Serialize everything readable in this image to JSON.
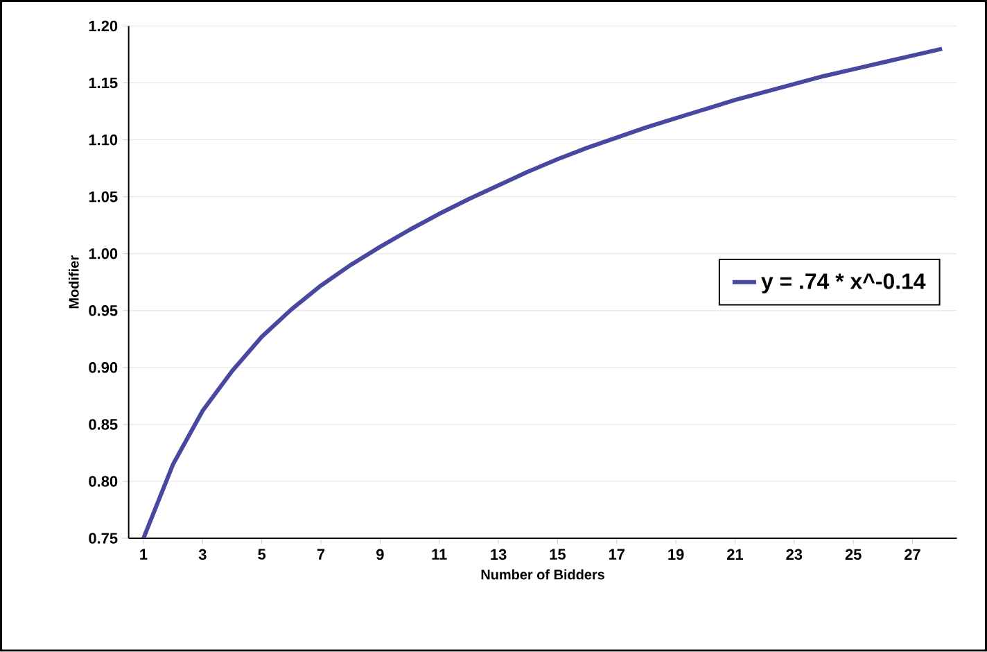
{
  "chart_data": {
    "type": "line",
    "xlabel": "Number of Bidders",
    "ylabel": "Modifier",
    "x": [
      1,
      2,
      3,
      4,
      5,
      6,
      7,
      8,
      9,
      10,
      11,
      12,
      13,
      14,
      15,
      16,
      17,
      18,
      19,
      20,
      21,
      22,
      23,
      24,
      25,
      26,
      27,
      28
    ],
    "series": [
      {
        "name": "y = .74 * x^-0.14",
        "color": "#4848a0",
        "values": [
          0.75,
          0.815,
          0.862,
          0.897,
          0.927,
          0.951,
          0.972,
          0.99,
          1.006,
          1.021,
          1.035,
          1.048,
          1.06,
          1.072,
          1.083,
          1.093,
          1.102,
          1.111,
          1.119,
          1.127,
          1.135,
          1.142,
          1.149,
          1.156,
          1.162,
          1.168,
          1.174,
          1.18
        ]
      }
    ],
    "xlim": [
      0.5,
      28.5
    ],
    "xticks": [
      1,
      3,
      5,
      7,
      9,
      11,
      13,
      15,
      17,
      19,
      21,
      23,
      25,
      27
    ],
    "ylim": [
      0.75,
      1.2
    ],
    "yticks": [
      0.75,
      {
        "value": 0.8,
        "label": "0.80"
      },
      0.85,
      {
        "value": 0.9,
        "label": "0.90"
      },
      0.95,
      {
        "value": 1.0,
        "label": "1.00"
      },
      1.05,
      {
        "value": 1.1,
        "label": "1.10"
      },
      1.15,
      {
        "value": 1.2,
        "label": "1.20"
      }
    ],
    "grid": "y",
    "legend": "right",
    "marker": "none",
    "line_style": "solid"
  }
}
